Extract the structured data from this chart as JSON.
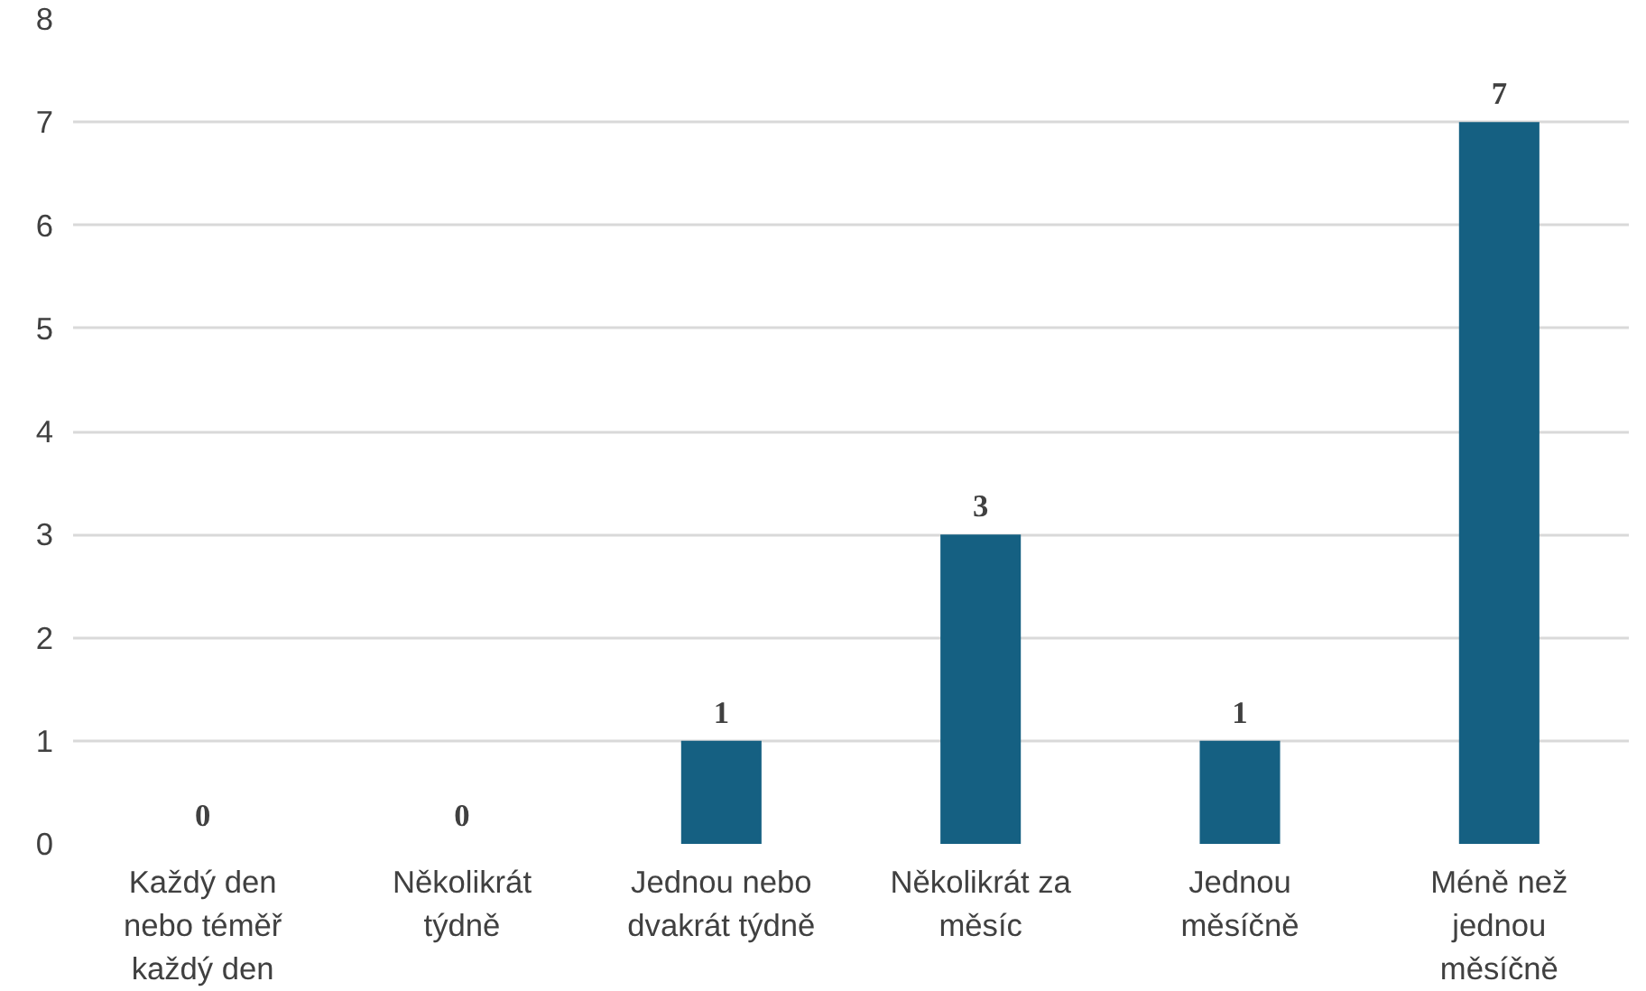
{
  "chart_data": {
    "type": "bar",
    "categories": [
      "Každý den nebo téměř každý den",
      "Několikrát týdně",
      "Jednou nebo dvakrát týdně",
      "Několikrát za měsíc",
      "Jednou měsíčně",
      "Méně než jednou měsíčně"
    ],
    "values": [
      0,
      0,
      1,
      3,
      1,
      7
    ],
    "color": "#156082",
    "ylim": [
      0,
      8
    ],
    "yticks": [
      0,
      1,
      2,
      3,
      4,
      5,
      6,
      7,
      8
    ],
    "grid": "y",
    "data_labels": true
  }
}
